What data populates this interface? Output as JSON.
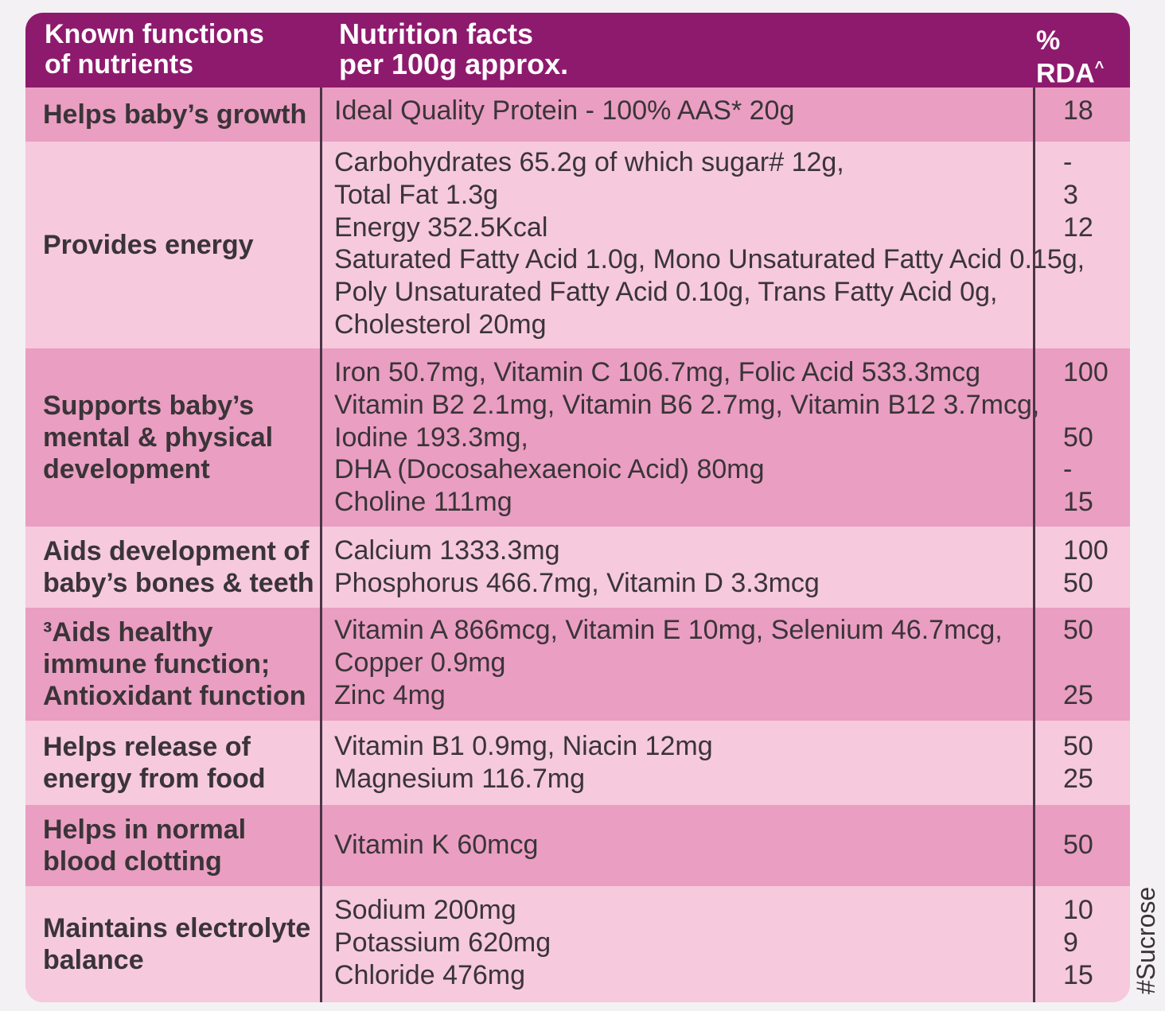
{
  "header": {
    "col1_line1": "Known functions",
    "col1_line2": "of nutrients",
    "col2_line1": "Nutrition facts",
    "col2_line2": "per 100g approx.",
    "col3_line1": "%",
    "col3_line2": "RDA",
    "col3_sup": "^"
  },
  "rows": [
    {
      "function": "Helps baby’s growth",
      "facts": [
        "Ideal Quality Protein - 100% AAS* 20g"
      ],
      "rda": [
        "18"
      ]
    },
    {
      "function": "Provides energy",
      "facts": [
        "Carbohydrates 65.2g of which sugar# 12g,",
        "Total Fat 1.3g",
        "Energy 352.5Kcal",
        "Saturated Fatty Acid 1.0g, Mono Unsaturated Fatty Acid 0.15g,",
        "Poly Unsaturated Fatty Acid 0.10g, Trans Fatty Acid 0g,",
        "Cholesterol 20mg"
      ],
      "rda": [
        "-",
        "3",
        "12",
        "",
        "",
        ""
      ]
    },
    {
      "function": "Supports baby’s mental & physical development",
      "facts": [
        "Iron 50.7mg, Vitamin C 106.7mg, Folic Acid 533.3mcg",
        "Vitamin B2 2.1mg, Vitamin B6 2.7mg, Vitamin B12 3.7mcg,",
        "Iodine 193.3mg,",
        "DHA (Docosahexaenoic Acid) 80mg",
        "Choline 111mg"
      ],
      "rda": [
        "100",
        "",
        "50",
        "-",
        "15"
      ]
    },
    {
      "function": "Aids development of baby’s bones & teeth",
      "facts": [
        "Calcium 1333.3mg",
        "Phosphorus 466.7mg, Vitamin D 3.3mcg"
      ],
      "rda": [
        "100",
        "50"
      ]
    },
    {
      "function": "³Aids healthy immune function; Antioxidant function",
      "facts": [
        "Vitamin A 866mcg, Vitamin E 10mg, Selenium 46.7mcg,",
        "Copper 0.9mg",
        "Zinc 4mg"
      ],
      "rda": [
        "50",
        "",
        "25"
      ]
    },
    {
      "function": "Helps release of energy from food",
      "facts": [
        "Vitamin B1 0.9mg, Niacin 12mg",
        "Magnesium 116.7mg"
      ],
      "rda": [
        "50",
        "25"
      ]
    },
    {
      "function": "Helps in normal blood clotting",
      "facts": [
        "Vitamin K 60mcg"
      ],
      "rda": [
        "50"
      ]
    },
    {
      "function": "Maintains electrolyte balance",
      "facts": [
        "Sodium 200mg",
        "Potassium 620mg",
        "Chloride 476mg"
      ],
      "rda": [
        "10",
        "9",
        "15"
      ]
    }
  ],
  "side_note": "#Sucrose"
}
